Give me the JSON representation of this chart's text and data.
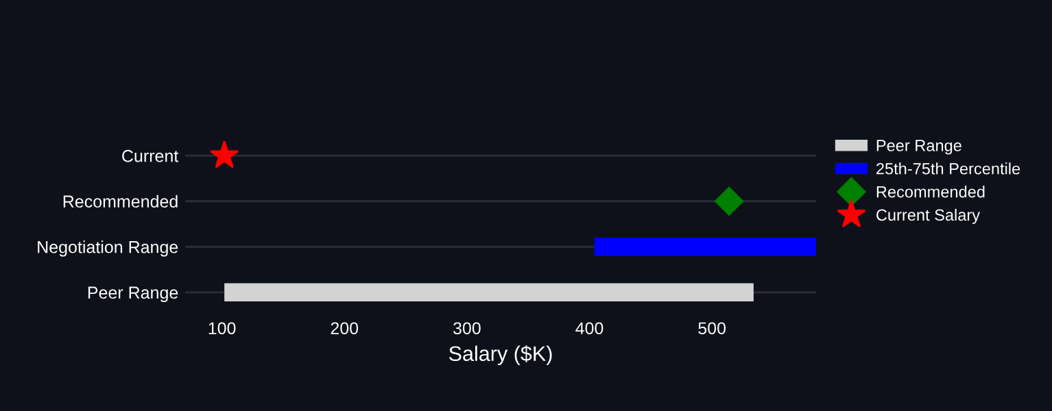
{
  "chart_data": {
    "type": "bar",
    "orientation": "horizontal",
    "xlabel": "Salary ($K)",
    "categories": [
      "Current",
      "Recommended",
      "Negotiation Range",
      "Peer Range"
    ],
    "series": [
      {
        "name": "Peer Range",
        "color": "#d3d3d3",
        "base": [
          null,
          null,
          null,
          102
        ],
        "values": [
          null,
          null,
          null,
          432
        ]
      },
      {
        "name": "25th-75th Percentile",
        "color": "#0000ff",
        "base": [
          null,
          null,
          404,
          null
        ],
        "values": [
          null,
          null,
          181,
          null
        ]
      },
      {
        "name": "Recommended",
        "type": "scatter",
        "marker": "diamond",
        "color": "#008000",
        "values": [
          null,
          514,
          null,
          null
        ]
      },
      {
        "name": "Current Salary",
        "type": "scatter",
        "marker": "star",
        "color": "#ff0000",
        "values": [
          102,
          null,
          null,
          null
        ]
      }
    ],
    "xlim": [
      70,
      585
    ],
    "xticks": [
      100,
      200,
      300,
      400,
      500
    ],
    "grid": "y",
    "legend": "right"
  }
}
